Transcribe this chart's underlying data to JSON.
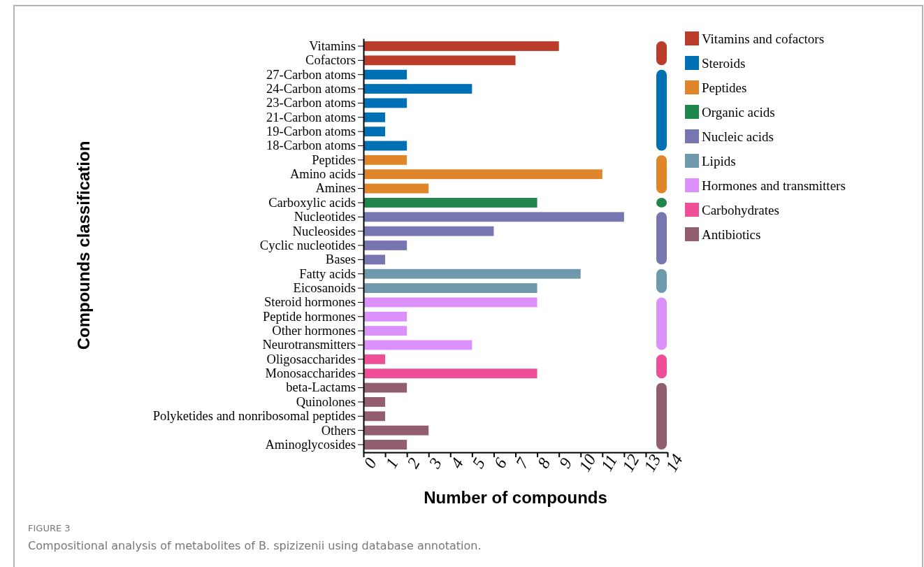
{
  "chart_data": {
    "type": "bar",
    "orientation": "horizontal",
    "xlabel": "Number of compounds",
    "ylabel": "Compounds classification",
    "categories": [
      "Vitamins",
      "Cofactors",
      "27-Carbon atoms",
      "24-Carbon atoms",
      "23-Carbon atoms",
      "21-Carbon atoms",
      "19-Carbon atoms",
      "18-Carbon atoms",
      "Peptides",
      "Amino acids",
      "Amines",
      "Carboxylic acids",
      "Nucleotides",
      "Nucleosides",
      "Cyclic nucleotides",
      "Bases",
      "Fatty acids",
      "Eicosanoids",
      "Steroid hormones",
      "Peptide hormones",
      "Other hormones",
      "Neurotransmitters",
      "Oligosaccharides",
      "Monosaccharides",
      "beta-Lactams",
      "Quinolones",
      "Polyketides and nonribosomal peptides",
      "Others",
      "Aminoglycosides"
    ],
    "series": [
      {
        "name": "Vitamins and cofactors",
        "color": "#bc3c2c",
        "values": [
          9,
          7,
          null,
          null,
          null,
          null,
          null,
          null,
          null,
          null,
          null,
          null,
          null,
          null,
          null,
          null,
          null,
          null,
          null,
          null,
          null,
          null,
          null,
          null,
          null,
          null,
          null,
          null,
          null
        ]
      },
      {
        "name": "Steroids",
        "color": "#0070b4",
        "values": [
          null,
          null,
          2,
          5,
          2,
          1,
          1,
          2,
          null,
          null,
          null,
          null,
          null,
          null,
          null,
          null,
          null,
          null,
          null,
          null,
          null,
          null,
          null,
          null,
          null,
          null,
          null,
          null,
          null
        ]
      },
      {
        "name": "Peptides",
        "color": "#e0862a",
        "values": [
          null,
          null,
          null,
          null,
          null,
          null,
          null,
          null,
          2,
          11,
          3,
          null,
          null,
          null,
          null,
          null,
          null,
          null,
          null,
          null,
          null,
          null,
          null,
          null,
          null,
          null,
          null,
          null,
          null
        ]
      },
      {
        "name": "Organic acids",
        "color": "#21854e",
        "values": [
          null,
          null,
          null,
          null,
          null,
          null,
          null,
          null,
          null,
          null,
          null,
          8,
          null,
          null,
          null,
          null,
          null,
          null,
          null,
          null,
          null,
          null,
          null,
          null,
          null,
          null,
          null,
          null,
          null
        ]
      },
      {
        "name": "Nucleic acids",
        "color": "#7876b1",
        "values": [
          null,
          null,
          null,
          null,
          null,
          null,
          null,
          null,
          null,
          null,
          null,
          null,
          12,
          6,
          2,
          1,
          null,
          null,
          null,
          null,
          null,
          null,
          null,
          null,
          null,
          null,
          null,
          null,
          null
        ]
      },
      {
        "name": "Lipids",
        "color": "#6f99ad",
        "values": [
          null,
          null,
          null,
          null,
          null,
          null,
          null,
          null,
          null,
          null,
          null,
          null,
          null,
          null,
          null,
          null,
          10,
          8,
          null,
          null,
          null,
          null,
          null,
          null,
          null,
          null,
          null,
          null,
          null
        ]
      },
      {
        "name": "Hormones and transmitters",
        "color": "#dc91fa",
        "values": [
          null,
          null,
          null,
          null,
          null,
          null,
          null,
          null,
          null,
          null,
          null,
          null,
          null,
          null,
          null,
          null,
          null,
          null,
          8,
          2,
          2,
          5,
          null,
          null,
          null,
          null,
          null,
          null,
          null
        ]
      },
      {
        "name": "Carbohydrates",
        "color": "#ee4f96",
        "values": [
          null,
          null,
          null,
          null,
          null,
          null,
          null,
          null,
          null,
          null,
          null,
          null,
          null,
          null,
          null,
          null,
          null,
          null,
          null,
          null,
          null,
          null,
          1,
          8,
          null,
          null,
          null,
          null,
          null
        ]
      },
      {
        "name": "Antibiotics",
        "color": "#925e6e",
        "values": [
          null,
          null,
          null,
          null,
          null,
          null,
          null,
          null,
          null,
          null,
          null,
          null,
          null,
          null,
          null,
          null,
          null,
          null,
          null,
          null,
          null,
          null,
          null,
          null,
          2,
          1,
          1,
          3,
          2
        ]
      }
    ],
    "xlim": [
      0,
      14
    ],
    "xticks": [
      0,
      1,
      2,
      3,
      4,
      5,
      6,
      7,
      8,
      9,
      10,
      11,
      12,
      13,
      14
    ],
    "legend": "top right",
    "grid": false,
    "annotations": [
      "FIGURE 3",
      "Compositional analysis of metabolites of B. spizizenii using database annotation."
    ]
  }
}
